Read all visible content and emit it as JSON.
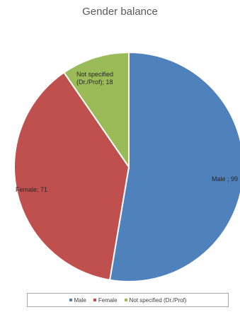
{
  "chart_data": {
    "type": "pie",
    "title": "Gender balance",
    "categories": [
      "Male",
      "Female",
      "Not specified (Dr./Prof)"
    ],
    "values": [
      99,
      71,
      18
    ],
    "data_labels": [
      "Male ; 99",
      "Female; 71",
      "Not specified (Dr./Prof); 18"
    ],
    "colors": [
      "#4f81bd",
      "#c0504d",
      "#9bbb59"
    ],
    "legend_position": "bottom"
  },
  "legend": {
    "items": [
      {
        "label": "Male",
        "color": "#4f81bd"
      },
      {
        "label": "Female",
        "color": "#c0504d"
      },
      {
        "label": "Not specified (Dr./Prof)",
        "color": "#9bbb59"
      }
    ]
  }
}
